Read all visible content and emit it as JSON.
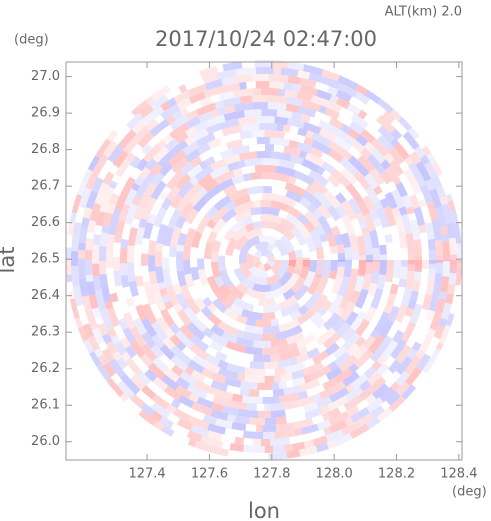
{
  "chart_data": {
    "type": "ppi",
    "title": "2017/10/24 02:47:00",
    "altitude_label": "ALT(km) 2.0",
    "x_label": "lon",
    "y_label": "lat",
    "x_unit": "(deg)",
    "y_unit": "(deg)",
    "xlim": [
      127.14,
      128.41
    ],
    "ylim": [
      25.95,
      27.04
    ],
    "xticks": [
      127.4,
      127.6,
      127.8,
      {
        "value": 128.0,
        "label": "128.0"
      },
      128.2,
      128.4
    ],
    "yticks": [
      {
        "value": 26.0,
        "label": "26.0"
      },
      26.1,
      26.2,
      26.3,
      26.4,
      26.5,
      26.6,
      26.7,
      26.8,
      26.9,
      {
        "value": 27.0,
        "label": "27.0"
      }
    ]
  }
}
